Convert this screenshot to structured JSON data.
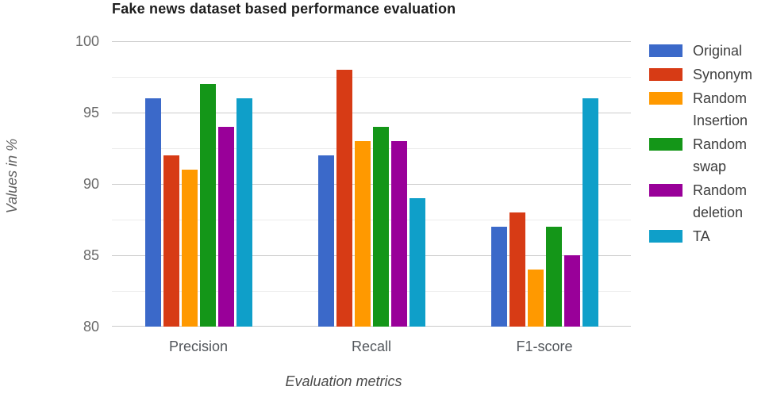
{
  "chart_data": {
    "type": "bar",
    "title": "Fake news dataset based performance evaluation",
    "xlabel": "Evaluation metrics",
    "ylabel": "Values in %",
    "categories": [
      "Precision",
      "Recall",
      "F1-score"
    ],
    "series": [
      {
        "name": "Original",
        "color": "#3b69c9",
        "values": [
          96,
          92,
          87
        ]
      },
      {
        "name": "Synonym",
        "color": "#d73b15",
        "values": [
          92,
          98,
          88
        ]
      },
      {
        "name": "Random Insertion",
        "color": "#ff9900",
        "values": [
          91,
          93,
          84
        ]
      },
      {
        "name": "Random swap",
        "color": "#149618",
        "values": [
          97,
          94,
          87
        ]
      },
      {
        "name": "Random deletion",
        "color": "#990099",
        "values": [
          94,
          93,
          85
        ]
      },
      {
        "name": "TA",
        "color": "#0f9fc9",
        "values": [
          96,
          89,
          96
        ]
      }
    ],
    "ylim": [
      80,
      100
    ],
    "yticks": [
      100,
      95,
      90,
      85,
      80
    ],
    "minor_gridline_step": 2.5,
    "grid": true,
    "legend_position": "right"
  }
}
